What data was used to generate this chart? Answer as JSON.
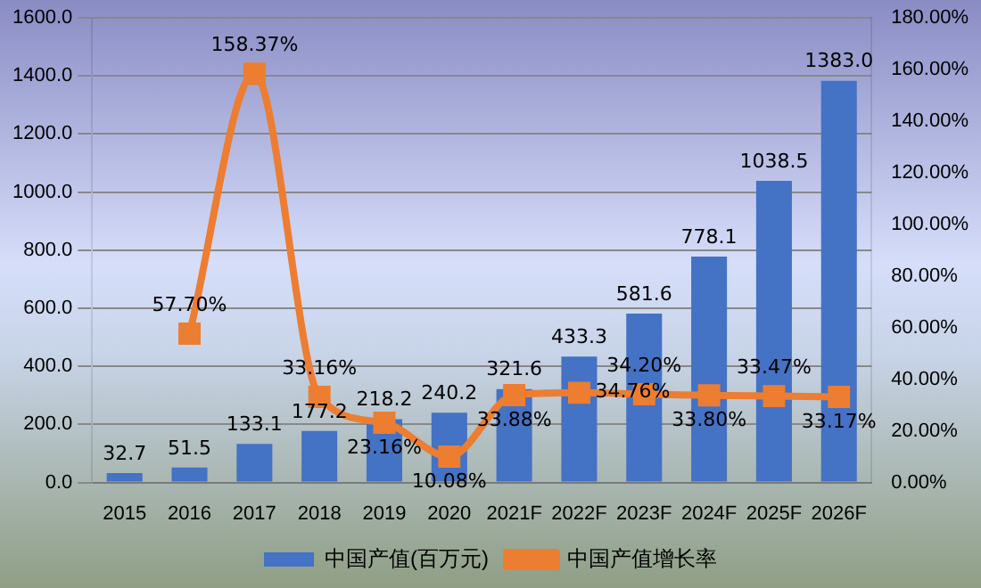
{
  "chart_data": {
    "type": "bar",
    "categories": [
      "2015",
      "2016",
      "2017",
      "2018",
      "2019",
      "2020",
      "2021F",
      "2022F",
      "2023F",
      "2024F",
      "2025F",
      "2026F"
    ],
    "series": [
      {
        "name": "中国产值(百万元)",
        "color": "#4472c4",
        "values": [
          32.7,
          51.5,
          133.1,
          177.2,
          218.2,
          240.2,
          321.6,
          433.3,
          581.6,
          778.1,
          1038.5,
          1383.0
        ],
        "value_labels": [
          "32.7",
          "51.5",
          "133.1",
          "177.2",
          "218.2",
          "240.2",
          "321.6",
          "433.3",
          "581.6",
          "778.1",
          "1038.5",
          "1383.0"
        ]
      },
      {
        "name": "中国产值增长率",
        "type": "line",
        "axis": "y2",
        "color": "#ed7d31",
        "values": [
          null,
          57.7,
          158.37,
          33.16,
          23.16,
          10.08,
          33.88,
          34.76,
          34.2,
          33.8,
          33.47,
          33.17
        ],
        "value_labels": [
          null,
          "57.70%",
          "158.37%",
          "33.16%",
          "23.16%",
          "10.08%",
          "33.88%",
          "34.76%",
          "34.20%",
          "33.80%",
          "33.47%",
          "33.17%"
        ]
      }
    ],
    "ylim": [
      0,
      1600
    ],
    "yticks": [
      {
        "value": 0,
        "label": "0.0"
      },
      {
        "value": 200,
        "label": "200.0"
      },
      {
        "value": 400,
        "label": "400.0"
      },
      {
        "value": 600,
        "label": "600.0"
      },
      {
        "value": 800,
        "label": "800.0"
      },
      {
        "value": 1000,
        "label": "1000.0"
      },
      {
        "value": 1200,
        "label": "1200.0"
      },
      {
        "value": 1400,
        "label": "1400.0"
      },
      {
        "value": 1600,
        "label": "1600.0"
      }
    ],
    "y2lim": [
      0,
      180
    ],
    "y2ticks": [
      {
        "value": 0,
        "label": "0.00%"
      },
      {
        "value": 20,
        "label": "20.00%"
      },
      {
        "value": 40,
        "label": "40.00%"
      },
      {
        "value": 60,
        "label": "60.00%"
      },
      {
        "value": 80,
        "label": "80.00%"
      },
      {
        "value": 100,
        "label": "100.00%"
      },
      {
        "value": 120,
        "label": "120.00%"
      },
      {
        "value": 140,
        "label": "140.00%"
      },
      {
        "value": 160,
        "label": "160.00%"
      },
      {
        "value": 180,
        "label": "180.00%"
      }
    ],
    "grid": "y",
    "legend": "bottom",
    "marker": "square"
  }
}
